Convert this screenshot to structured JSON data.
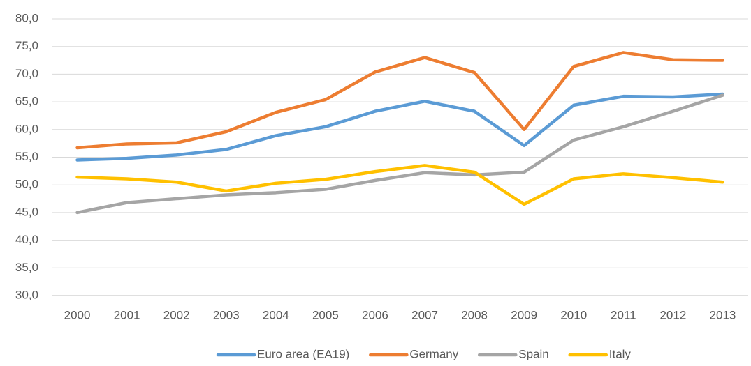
{
  "chart_data": {
    "type": "line",
    "categories": [
      "2000",
      "2001",
      "2002",
      "2003",
      "2004",
      "2005",
      "2006",
      "2007",
      "2008",
      "2009",
      "2010",
      "2011",
      "2012",
      "2013"
    ],
    "series": [
      {
        "name": "Euro area (EA19)",
        "color": "#5b9bd5",
        "values": [
          54.5,
          54.8,
          55.4,
          56.4,
          58.9,
          60.5,
          63.3,
          65.1,
          63.3,
          57.1,
          64.4,
          66.0,
          65.9,
          66.4
        ]
      },
      {
        "name": "Germany",
        "color": "#ed7d31",
        "values": [
          56.7,
          57.4,
          57.6,
          59.6,
          63.1,
          65.4,
          70.4,
          73.0,
          70.3,
          60.0,
          71.4,
          73.9,
          72.6,
          72.5
        ]
      },
      {
        "name": "Spain",
        "color": "#a5a5a5",
        "values": [
          45.0,
          46.8,
          47.5,
          48.2,
          48.6,
          49.2,
          50.8,
          52.2,
          51.8,
          52.3,
          58.1,
          60.5,
          63.3,
          66.2
        ]
      },
      {
        "name": "Italy",
        "color": "#ffc000",
        "values": [
          51.4,
          51.1,
          50.5,
          48.9,
          50.3,
          51.0,
          52.4,
          53.5,
          52.3,
          46.5,
          51.1,
          52.0,
          51.3,
          50.5
        ]
      }
    ],
    "ylim": [
      30,
      80
    ],
    "yticks": [
      {
        "value": 30,
        "label": "30,0"
      },
      {
        "value": 35,
        "label": "35,0"
      },
      {
        "value": 40,
        "label": "40,0"
      },
      {
        "value": 45,
        "label": "45,0"
      },
      {
        "value": 50,
        "label": "50,0"
      },
      {
        "value": 55,
        "label": "55,0"
      },
      {
        "value": 60,
        "label": "60,0"
      },
      {
        "value": 65,
        "label": "65,0"
      },
      {
        "value": 70,
        "label": "70,0"
      },
      {
        "value": 75,
        "label": "75,0"
      },
      {
        "value": 80,
        "label": "80,0"
      }
    ],
    "grid": true,
    "legend": "bottom"
  }
}
